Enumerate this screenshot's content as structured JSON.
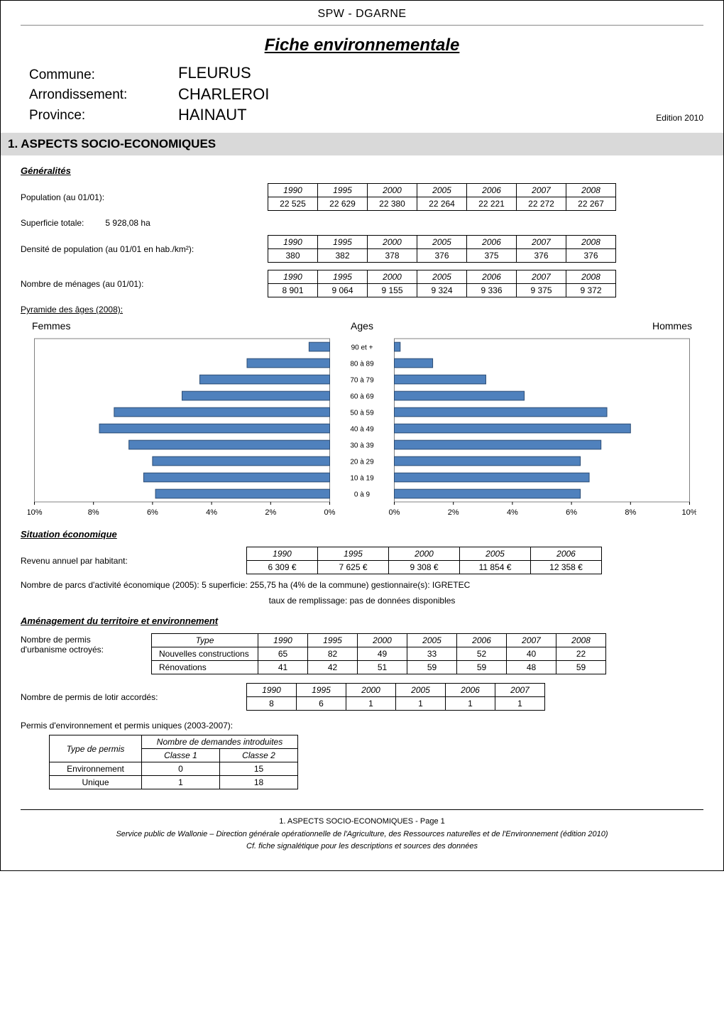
{
  "header": {
    "org": "SPW - DGARNE",
    "title": "Fiche environnementale"
  },
  "location": {
    "commune_label": "Commune:",
    "commune_value": "FLEURUS",
    "arr_label": "Arrondissement:",
    "arr_value": "CHARLEROI",
    "prov_label": "Province:",
    "prov_value": "HAINAUT",
    "edition": "Edition   2010"
  },
  "section1_title": "1. ASPECTS SOCIO-ECONOMIQUES",
  "generalites": {
    "heading": "Généralités",
    "population_label": "Population (au 01/01):",
    "population": {
      "years": [
        "1990",
        "1995",
        "2000",
        "2005",
        "2006",
        "2007",
        "2008"
      ],
      "values": [
        "22 525",
        "22 629",
        "22 380",
        "22 264",
        "22 221",
        "22 272",
        "22 267"
      ]
    },
    "superficie_label": "Superficie totale:",
    "superficie_value": "5 928,08 ha",
    "density_label": "Densité de population (au 01/01 en hab./km²):",
    "density": {
      "years": [
        "1990",
        "1995",
        "2000",
        "2005",
        "2006",
        "2007",
        "2008"
      ],
      "values": [
        "380",
        "382",
        "378",
        "376",
        "375",
        "376",
        "376"
      ]
    },
    "menages_label": "Nombre de ménages (au 01/01):",
    "menages": {
      "years": [
        "1990",
        "1995",
        "2000",
        "2005",
        "2006",
        "2007",
        "2008"
      ],
      "values": [
        "8 901",
        "9 064",
        "9 155",
        "9 324",
        "9 336",
        "9 375",
        "9 372"
      ]
    },
    "pyramide_heading": "Pyramide des âges (2008):"
  },
  "pyramid": {
    "femmes_label": "Femmes",
    "hommes_label": "Hommes",
    "ages_label": "Ages",
    "age_bins": [
      "90 et +",
      "80 à 89",
      "70 à 79",
      "60 à 69",
      "50 à 59",
      "40 à 49",
      "30 à 39",
      "20 à 29",
      "10 à 19",
      "0 à 9"
    ],
    "femmes_pct": [
      0.7,
      2.8,
      4.4,
      5.0,
      7.3,
      7.8,
      6.8,
      6.0,
      6.3,
      5.9
    ],
    "hommes_pct": [
      0.2,
      1.3,
      3.1,
      4.4,
      7.2,
      8.0,
      7.0,
      6.3,
      6.6,
      6.3
    ],
    "x_ticks_left": [
      "10%",
      "8%",
      "6%",
      "4%",
      "2%",
      "0%"
    ],
    "x_ticks_right": [
      "0%",
      "2%",
      "4%",
      "6%",
      "8%",
      "10%"
    ],
    "bar_color_f": "#4f81bd",
    "bar_border_f": "#2c4d75",
    "bar_color_m": "#4f81bd",
    "bar_border_m": "#2c4d75",
    "plot_border": "#808080",
    "axis_max": 10
  },
  "situation": {
    "heading": "Situation économique",
    "revenu_label": "Revenu annuel par habitant:",
    "revenu": {
      "years": [
        "1990",
        "1995",
        "2000",
        "2005",
        "2006"
      ],
      "values": [
        "6 309 €",
        "7 625 €",
        "9 308 €",
        "11 854 €",
        "12 358 €"
      ]
    },
    "parcs_line1": "Nombre de parcs d'activité économique (2005):   5      superficie:   255,75 ha (4% de la commune)         gestionnaire(s):   IGRETEC",
    "parcs_line2": "taux de remplissage:   pas de données disponibles"
  },
  "amenagement": {
    "heading": "Aménagement du territoire et environnement",
    "permis_urb_label1": "Nombre de permis",
    "permis_urb_label2": "d'urbanisme octroyés:",
    "urbanisme": {
      "col_type": "Type",
      "years": [
        "1990",
        "1995",
        "2000",
        "2005",
        "2006",
        "2007",
        "2008"
      ],
      "rows": [
        {
          "type": "Nouvelles constructions",
          "vals": [
            "65",
            "82",
            "49",
            "33",
            "52",
            "40",
            "22"
          ]
        },
        {
          "type": "Rénovations",
          "vals": [
            "41",
            "42",
            "51",
            "59",
            "59",
            "48",
            "59"
          ]
        }
      ]
    },
    "lotir_label": "Nombre de permis de lotir accordés:",
    "lotir": {
      "years": [
        "1990",
        "1995",
        "2000",
        "2005",
        "2006",
        "2007"
      ],
      "values": [
        "8",
        "6",
        "1",
        "1",
        "1",
        "1"
      ]
    },
    "permis_env_heading": "Permis d'environnement et permis uniques (2003-2007):",
    "env_table": {
      "h_type": "Type de permis",
      "h_demandes": "Nombre de demandes  introduites",
      "h_c1": "Classe 1",
      "h_c2": "Classe 2",
      "rows": [
        {
          "type": "Environnement",
          "c1": "0",
          "c2": "15"
        },
        {
          "type": "Unique",
          "c1": "1",
          "c2": "18"
        }
      ]
    }
  },
  "footer": {
    "page_line": "1. ASPECTS SOCIO-ECONOMIQUES - Page 1",
    "line2": "Service public de Wallonie – Direction générale opérationnelle de l'Agriculture, des Ressources naturelles et de l'Environnement (édition 2010)",
    "line3": "Cf. fiche signalétique pour les descriptions et sources des données"
  }
}
